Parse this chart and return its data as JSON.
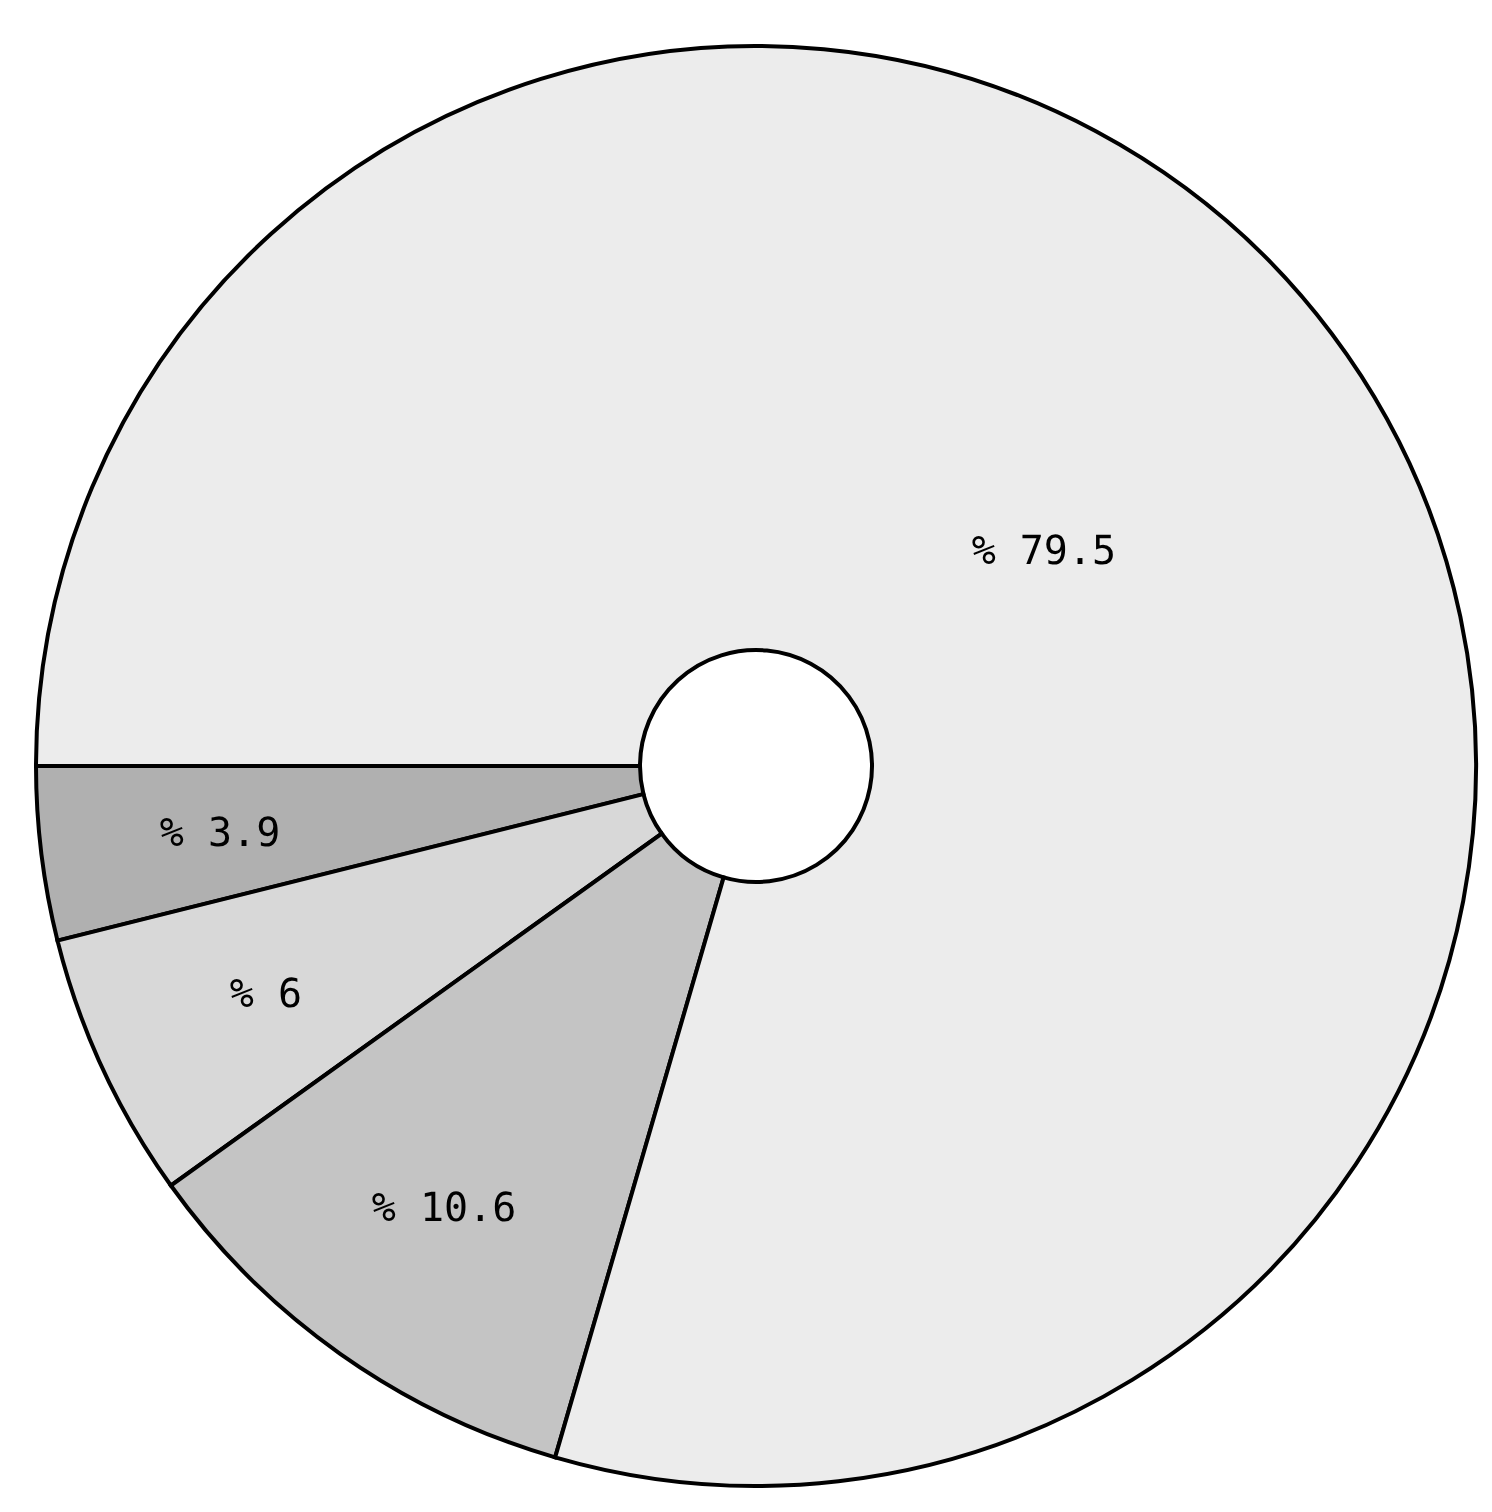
{
  "chart_data": {
    "type": "donut",
    "categories": [
      null,
      null,
      null,
      null
    ],
    "values": [
      3.9,
      6,
      10.6,
      79.5
    ],
    "colors": [
      "#b0b0b0",
      "#d8d8d8",
      "#c4c4c4",
      "#ececec"
    ],
    "value_labels": [
      "% 3.9",
      "% 6",
      "% 10.6",
      "% 79.5"
    ]
  }
}
